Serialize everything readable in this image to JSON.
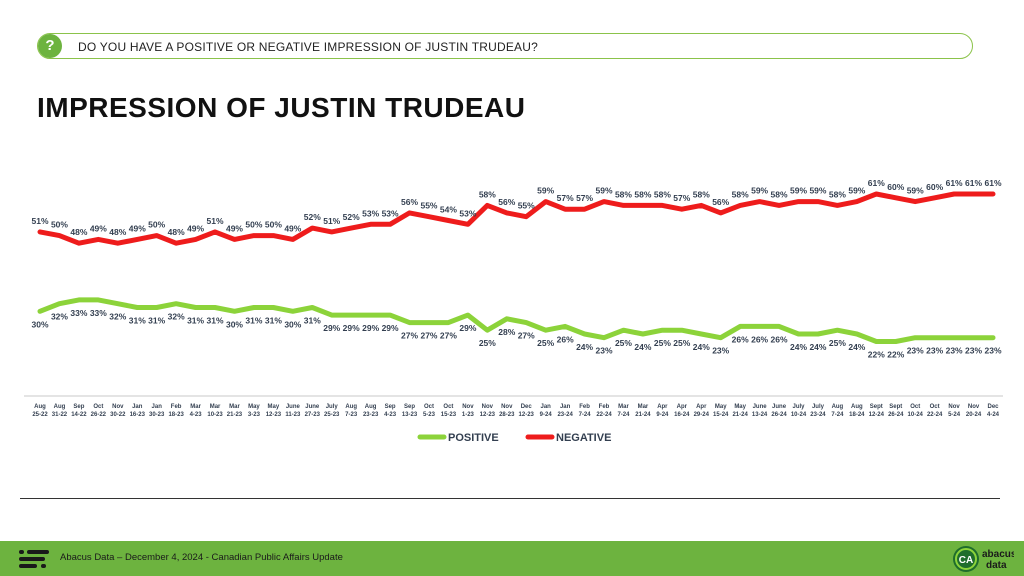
{
  "question": {
    "icon": "question-icon",
    "text": "DO YOU HAVE A POSITIVE OR NEGATIVE IMPRESSION OF JUSTIN TRUDEAU?"
  },
  "title": "IMPRESSION OF JUSTIN TRUDEAU",
  "footer": {
    "text": "Abacus Data – December 4, 2024 - Canadian Public Affairs Update",
    "brand_line1": "abacus",
    "brand_line2": "data",
    "brand_mark": "CA"
  },
  "colors": {
    "positive": "#8cd33a",
    "negative": "#ee1c1c",
    "accent": "#6db33f",
    "label": "#333f50"
  },
  "chart_data": {
    "type": "line",
    "title": "IMPRESSION OF JUSTIN TRUDEAU",
    "xlabel": "",
    "ylabel": "",
    "ylim": [
      15,
      70
    ],
    "grid": false,
    "legend": "bottom-center",
    "categories": [
      [
        "Aug",
        "25-22"
      ],
      [
        "Aug",
        "31-22"
      ],
      [
        "Sep",
        "14-22"
      ],
      [
        "Oct",
        "26-22"
      ],
      [
        "Nov",
        "30-22"
      ],
      [
        "Jan",
        "16-23"
      ],
      [
        "Jan",
        "30-23"
      ],
      [
        "Feb",
        "18-23"
      ],
      [
        "Mar",
        "4-23"
      ],
      [
        "Mar",
        "10-23"
      ],
      [
        "Mar",
        "21-23"
      ],
      [
        "May",
        "3-23"
      ],
      [
        "May",
        "12-23"
      ],
      [
        "June",
        "11-23"
      ],
      [
        "June",
        "27-23"
      ],
      [
        "July",
        "25-23"
      ],
      [
        "Aug",
        "7-23"
      ],
      [
        "Aug",
        "23-23"
      ],
      [
        "Sep",
        "4-23"
      ],
      [
        "Sep",
        "13-23"
      ],
      [
        "Oct",
        "5-23"
      ],
      [
        "Oct",
        "15-23"
      ],
      [
        "Nov",
        "1-23"
      ],
      [
        "Nov",
        "12-23"
      ],
      [
        "Nov",
        "28-23"
      ],
      [
        "Dec",
        "12-23"
      ],
      [
        "Jan",
        "9-24"
      ],
      [
        "Jan",
        "23-24"
      ],
      [
        "Feb",
        "7-24"
      ],
      [
        "Feb",
        "22-24"
      ],
      [
        "Mar",
        "7-24"
      ],
      [
        "Mar",
        "21-24"
      ],
      [
        "Apr",
        "9-24"
      ],
      [
        "Apr",
        "16-24"
      ],
      [
        "Apr",
        "29-24"
      ],
      [
        "May",
        "15-24"
      ],
      [
        "May",
        "21-24"
      ],
      [
        "June",
        "13-24"
      ],
      [
        "June",
        "26-24"
      ],
      [
        "July",
        "10-24"
      ],
      [
        "July",
        "23-24"
      ],
      [
        "Aug",
        "7-24"
      ],
      [
        "Aug",
        "18-24"
      ],
      [
        "Sept",
        "12-24"
      ],
      [
        "Sept",
        "26-24"
      ],
      [
        "Oct",
        "10-24"
      ],
      [
        "Oct",
        "22-24"
      ],
      [
        "Nov",
        "5-24"
      ],
      [
        "Nov",
        "20-24"
      ],
      [
        "Dec",
        "4-24"
      ]
    ],
    "series": [
      {
        "name": "POSITIVE",
        "values": [
          30,
          32,
          33,
          33,
          32,
          31,
          31,
          32,
          31,
          31,
          30,
          31,
          31,
          30,
          31,
          29,
          29,
          29,
          29,
          27,
          27,
          27,
          29,
          25,
          28,
          27,
          25,
          26,
          24,
          23,
          25,
          24,
          25,
          25,
          24,
          23,
          26,
          26,
          26,
          24,
          24,
          25,
          24,
          22,
          22,
          23,
          23,
          23,
          23,
          23
        ]
      },
      {
        "name": "NEGATIVE",
        "values": [
          51,
          50,
          48,
          49,
          48,
          49,
          50,
          48,
          49,
          51,
          49,
          50,
          50,
          49,
          52,
          51,
          52,
          53,
          53,
          56,
          55,
          54,
          53,
          58,
          56,
          55,
          59,
          57,
          57,
          59,
          58,
          58,
          58,
          57,
          58,
          56,
          58,
          59,
          58,
          59,
          59,
          58,
          59,
          61,
          60,
          59,
          60,
          61,
          61,
          61
        ]
      }
    ]
  }
}
